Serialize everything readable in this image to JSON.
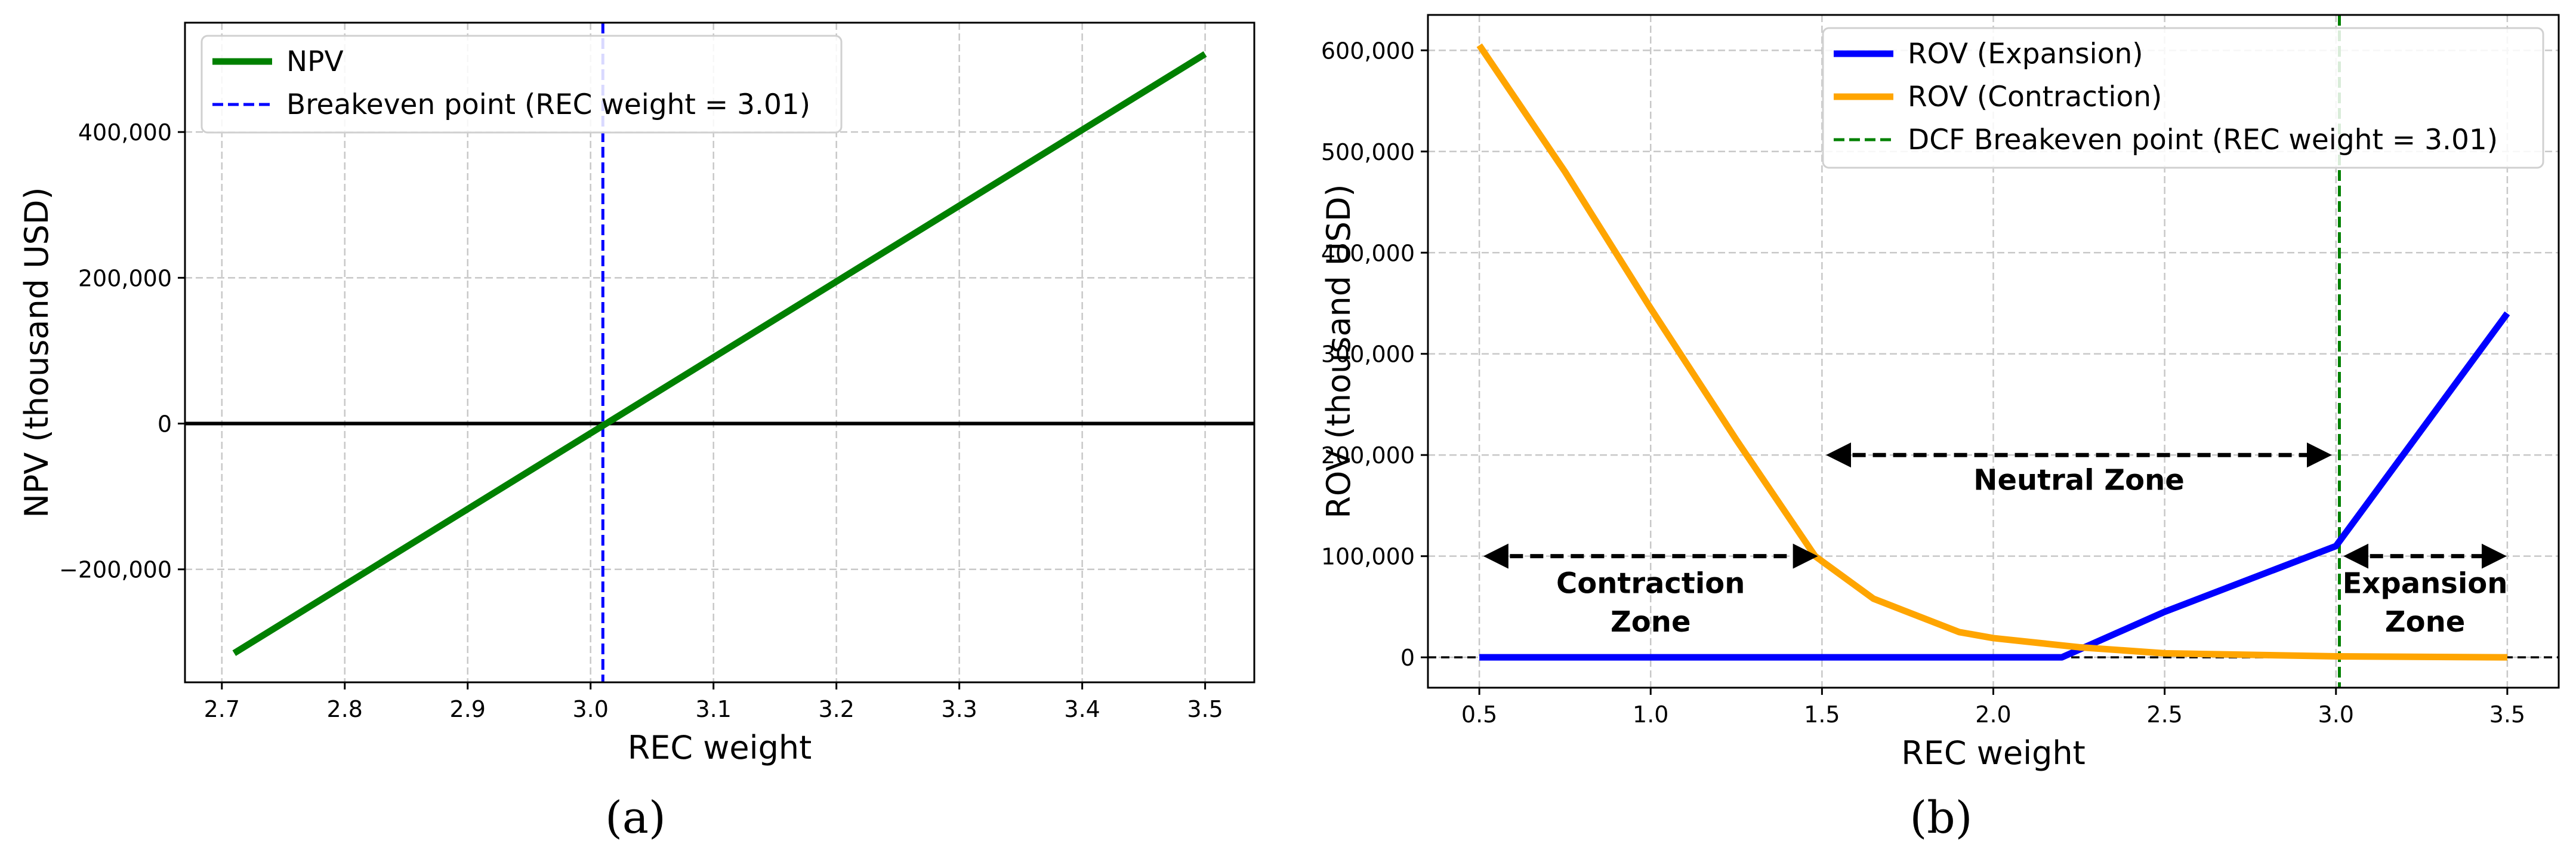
{
  "chart_data": [
    {
      "type": "line",
      "panel_label": "(a)",
      "xlabel": "REC weight",
      "ylabel": "NPV (thousand USD)",
      "xlim": [
        2.67,
        3.54
      ],
      "ylim": [
        -355000,
        550000
      ],
      "xticks": [
        2.7,
        2.8,
        2.9,
        3.0,
        3.1,
        3.2,
        3.3,
        3.4,
        3.5
      ],
      "xtick_labels": [
        "2.7",
        "2.8",
        "2.9",
        "3.0",
        "3.1",
        "3.2",
        "3.3",
        "3.4",
        "3.5"
      ],
      "yticks": [
        -200000,
        0,
        200000,
        400000
      ],
      "ytick_labels": [
        "−200,000",
        "0",
        "200,000",
        "400,000"
      ],
      "grid": true,
      "legend_position": "top-left",
      "zero_line": {
        "y": 0,
        "color": "#000000"
      },
      "vline": {
        "x": 3.01,
        "color": "#0000ff",
        "style": "dashed",
        "label": "Breakeven point (REC weight = 3.01)"
      },
      "series": [
        {
          "name": "NPV",
          "color": "#008000",
          "x": [
            2.71,
            3.5
          ],
          "y": [
            -315000,
            507000
          ]
        }
      ]
    },
    {
      "type": "line",
      "panel_label": "(b)",
      "xlabel": "REC weight",
      "ylabel": "ROV (thousand USD)",
      "xlim": [
        0.35,
        3.65
      ],
      "ylim": [
        -30000,
        635000
      ],
      "xticks": [
        0.5,
        1.0,
        1.5,
        2.0,
        2.5,
        3.0,
        3.5
      ],
      "xtick_labels": [
        "0.5",
        "1.0",
        "1.5",
        "2.0",
        "2.5",
        "3.0",
        "3.5"
      ],
      "yticks": [
        0,
        100000,
        200000,
        300000,
        400000,
        500000,
        600000
      ],
      "ytick_labels": [
        "0",
        "100,000",
        "200,000",
        "300,000",
        "400,000",
        "500,000",
        "600,000"
      ],
      "grid": true,
      "legend_position": "top-right",
      "zero_line": {
        "y": 0,
        "color": "#000000",
        "style": "dashed"
      },
      "vline": {
        "x": 3.01,
        "color": "#008000",
        "style": "dashed",
        "label": "DCF Breakeven point (REC weight = 3.01)"
      },
      "series": [
        {
          "name": "ROV (Expansion)",
          "color": "#0000ff",
          "x": [
            0.5,
            1.0,
            1.5,
            2.0,
            2.2,
            2.5,
            3.0,
            3.5
          ],
          "y": [
            0,
            0,
            0,
            0,
            0,
            45000,
            110000,
            340000
          ]
        },
        {
          "name": "ROV (Contraction)",
          "color": "#ffa500",
          "x": [
            0.5,
            0.75,
            1.0,
            1.25,
            1.48,
            1.65,
            1.9,
            2.0,
            2.25,
            2.5,
            3.0,
            3.5
          ],
          "y": [
            605000,
            480000,
            345000,
            215000,
            100000,
            58000,
            25000,
            19000,
            10000,
            4000,
            1000,
            0
          ]
        }
      ],
      "zones": [
        {
          "label": [
            "Contraction",
            "Zone"
          ],
          "x_from": 0.53,
          "x_to": 1.47,
          "arrow_y": 100000,
          "text_x": 1.0,
          "text_y": [
            73000,
            35000
          ]
        },
        {
          "label": [
            "Neutral Zone"
          ],
          "x_from": 1.53,
          "x_to": 2.97,
          "arrow_y": 200000,
          "text_x": 2.25,
          "text_y": [
            175000
          ]
        },
        {
          "label": [
            "Expansion",
            "Zone"
          ],
          "x_from": 3.04,
          "x_to": 3.48,
          "arrow_y": 100000,
          "text_x": 3.26,
          "text_y": [
            73000,
            35000
          ]
        }
      ]
    }
  ]
}
